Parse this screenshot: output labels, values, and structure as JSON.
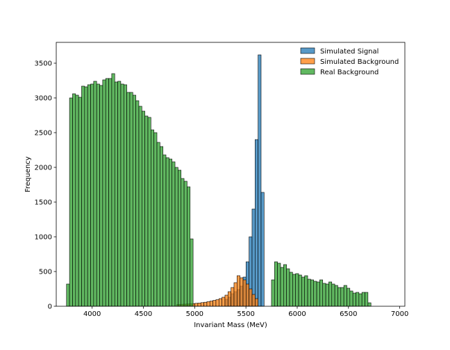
{
  "chart_data": {
    "type": "bar",
    "subtype": "histogram",
    "title": "",
    "xlabel": "Invariant Mass (MeV)",
    "ylabel": "Frequency",
    "xlim": [
      3650,
      7050
    ],
    "ylim": [
      0,
      3800
    ],
    "xticks": [
      4000,
      4500,
      5000,
      5500,
      6000,
      6500,
      7000
    ],
    "yticks": [
      0,
      500,
      1000,
      1500,
      2000,
      2500,
      3000,
      3500
    ],
    "grid": false,
    "legend": "top-right",
    "bin_width": 29.4,
    "series": [
      {
        "name": "Simulated Signal",
        "color": "#1f77b4",
        "bin_start": 5295,
        "values": [
          100,
          130,
          180,
          210,
          240,
          290,
          420,
          640,
          1000,
          1400,
          2400,
          3620,
          1640
        ]
      },
      {
        "name": "Simulated Background",
        "color": "#ff7f0e",
        "bin_start": 4825,
        "values": [
          25,
          28,
          30,
          32,
          35,
          38,
          42,
          46,
          52,
          58,
          66,
          75,
          85,
          95,
          110,
          130,
          160,
          210,
          270,
          340,
          440,
          410,
          380,
          320,
          250,
          170,
          110
        ]
      },
      {
        "name": "Real Background",
        "color": "#2ca02c",
        "bin_start": 3750,
        "values": [
          320,
          3000,
          3060,
          3040,
          3010,
          3170,
          3160,
          3190,
          3200,
          3240,
          3200,
          3180,
          3260,
          3280,
          3280,
          3350,
          3230,
          3240,
          3200,
          3190,
          3080,
          3080,
          3040,
          2960,
          2880,
          2810,
          2740,
          2720,
          2540,
          2500,
          2360,
          2300,
          2180,
          2140,
          2120,
          2080,
          2000,
          1960,
          1840,
          1800,
          1720,
          970,
          0,
          0,
          0,
          0,
          0,
          0,
          0,
          0,
          0,
          0,
          0,
          0,
          0,
          0,
          0,
          0,
          0,
          0,
          0,
          0,
          0,
          0,
          0,
          0,
          0,
          0,
          380,
          640,
          620,
          560,
          600,
          540,
          490,
          460,
          470,
          450,
          420,
          440,
          390,
          380,
          360,
          350,
          380,
          330,
          320,
          350,
          320,
          300,
          270,
          270,
          300,
          260,
          220,
          190,
          200,
          180,
          200,
          200,
          50
        ]
      }
    ]
  }
}
